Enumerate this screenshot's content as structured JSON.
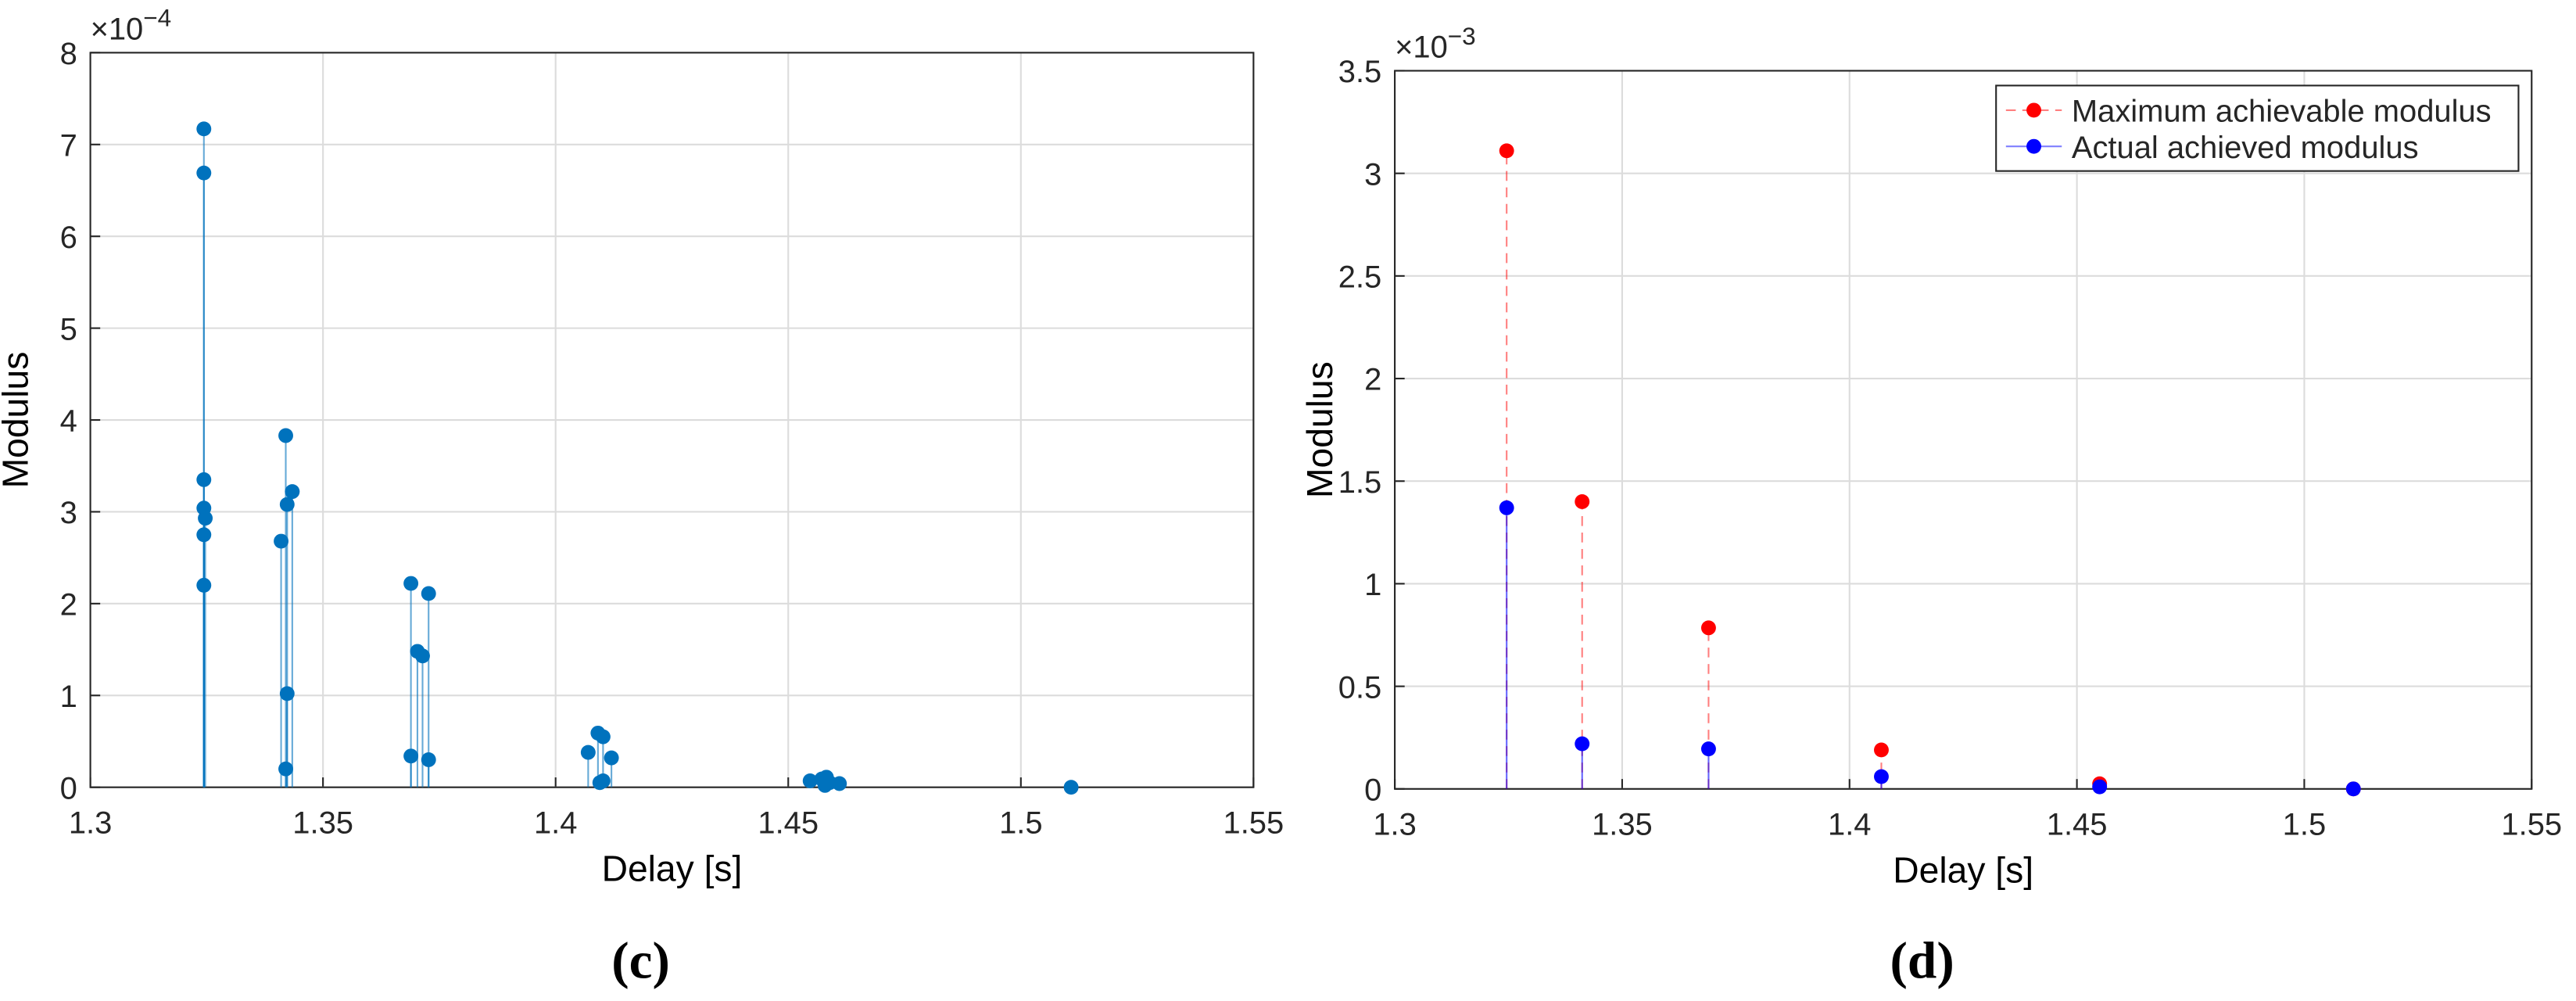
{
  "chart_data": [
    {
      "type": "stem",
      "caption": "(c)",
      "xlabel": "Delay [s]",
      "ylabel": "Modulus",
      "ylabel_multiplier": "×10",
      "ylabel_exponent": "−4",
      "xlim": [
        1.3,
        1.55
      ],
      "xticks": [
        1.3,
        1.35,
        1.4,
        1.45,
        1.5,
        1.55
      ],
      "ylim": [
        0,
        8
      ],
      "yticks": [
        0,
        1,
        2,
        3,
        4,
        5,
        6,
        7,
        8
      ],
      "grid": true,
      "x": [
        1.3244,
        1.3244,
        1.3244,
        1.3244,
        1.3247,
        1.3244,
        1.3244,
        1.342,
        1.3423,
        1.3434,
        1.341,
        1.3423,
        1.342,
        1.3689,
        1.3727,
        1.3703,
        1.3714,
        1.3689,
        1.3727,
        1.407,
        1.4091,
        1.4102,
        1.412,
        1.4095,
        1.4102,
        1.4547,
        1.4572,
        1.4582,
        1.4579,
        1.4589,
        1.461,
        1.5108
      ],
      "series": [
        {
          "color": "#0072bd",
          "values": [
            7.17,
            6.69,
            3.35,
            3.04,
            2.93,
            2.75,
            2.2,
            3.83,
            3.08,
            3.22,
            2.68,
            1.02,
            0.2,
            2.22,
            2.11,
            1.48,
            1.43,
            0.34,
            0.3,
            0.38,
            0.59,
            0.55,
            0.32,
            0.05,
            0.07,
            0.07,
            0.09,
            0.11,
            0.02,
            0.05,
            0.04,
            0.0
          ]
        }
      ]
    },
    {
      "type": "stem",
      "caption": "(d)",
      "xlabel": "Delay [s]",
      "ylabel": "Modulus",
      "ylabel_multiplier": "×10",
      "ylabel_exponent": "−3",
      "xlim": [
        1.3,
        1.55
      ],
      "xticks": [
        1.3,
        1.35,
        1.4,
        1.45,
        1.5,
        1.55
      ],
      "ylim": [
        0,
        3.5
      ],
      "yticks": [
        0,
        0.5,
        1,
        1.5,
        2,
        2.5,
        3,
        3.5
      ],
      "grid": true,
      "legend": "northeast",
      "x": [
        1.3246,
        1.3412,
        1.369,
        1.407,
        1.455,
        1.5108
      ],
      "series": [
        {
          "name": "Maximum achievable modulus",
          "color": "#ff0000",
          "values": [
            3.11,
            1.4,
            0.785,
            0.19,
            0.025,
            0.0
          ]
        },
        {
          "name": "Actual achieved modulus",
          "color": "#0000ff",
          "values": [
            1.37,
            0.22,
            0.195,
            0.06,
            0.01,
            0.0
          ]
        }
      ]
    }
  ]
}
